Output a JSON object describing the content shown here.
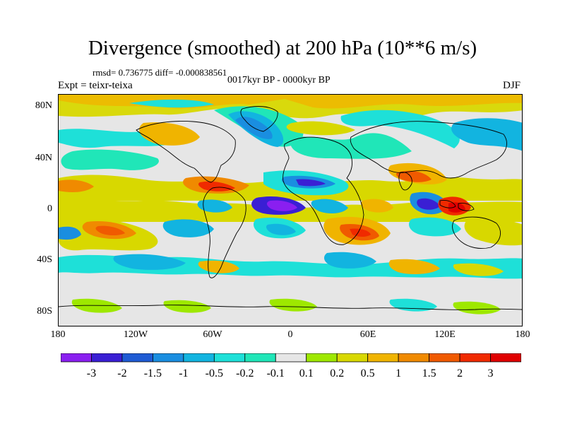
{
  "title": "Divergence (smoothed) at 200 hPa (10**6 m/s)",
  "stats": "rmsd= 0.736775 diff= -0.000838561",
  "period": "0017kyr BP - 0000kyr BP",
  "experiment": "Expt = teixr-teixa",
  "season": "DJF",
  "lat_labels": [
    "80N",
    "40N",
    "0",
    "40S",
    "80S"
  ],
  "lon_labels": [
    "180",
    "120W",
    "60W",
    "0",
    "60E",
    "120E",
    "180"
  ],
  "colorbar": {
    "labels": [
      "-3",
      "-2",
      "-1.5",
      "-1",
      "-0.5",
      "-0.2",
      "-0.1",
      "0.1",
      "0.2",
      "0.5",
      "1",
      "1.5",
      "2",
      "3"
    ],
    "colors": [
      "#8a1ff0",
      "#3a1fd4",
      "#1f5bd4",
      "#1a8ee0",
      "#12b4e0",
      "#1ee0d8",
      "#20e6b8",
      "#e6e6e6",
      "#9ee800",
      "#d8d800",
      "#f0b400",
      "#f08a00",
      "#f05a00",
      "#f02a00",
      "#e00000"
    ]
  }
}
